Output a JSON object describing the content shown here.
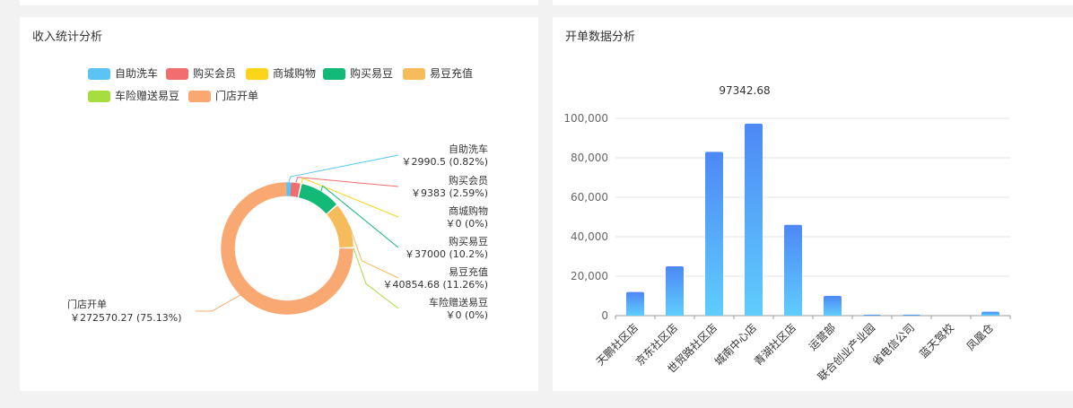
{
  "income_panel": {
    "title": "收入统计分析"
  },
  "orders_panel": {
    "title": "开单数据分析"
  },
  "chart_data": [
    {
      "type": "pie",
      "variant": "donut",
      "legend_position": "top-left",
      "slices": [
        {
          "name": "自助洗车",
          "value": 2990.5,
          "label": "￥2990.5 (0.82%)",
          "color": "#5bc4f4"
        },
        {
          "name": "购买会员",
          "value": 9383,
          "label": "￥9383 (2.59%)",
          "color": "#f26d6d"
        },
        {
          "name": "商城购物",
          "value": 0,
          "label": "￥0 (0%)",
          "color": "#fad51a"
        },
        {
          "name": "购买易豆",
          "value": 37000,
          "label": "￥37000 (10.2%)",
          "color": "#13b976"
        },
        {
          "name": "易豆充值",
          "value": 40854.68,
          "label": "￥40854.68 (11.26%)",
          "color": "#f6bb5a"
        },
        {
          "name": "车险赠送易豆",
          "value": 0,
          "label": "￥0 (0%)",
          "color": "#a8dd3f"
        },
        {
          "name": "门店开单",
          "value": 272570.27,
          "label": "￥272570.27 (75.13%)",
          "color": "#f8a870"
        }
      ]
    },
    {
      "type": "bar",
      "categories": [
        "天鹏社区店",
        "京东社区店",
        "世贸路社区店",
        "城南中心店",
        "青湖社区店",
        "运营部",
        "联合创业产业园",
        "省电信公司",
        "蓝天驾校",
        "凤凰仓"
      ],
      "values": [
        12000,
        25000,
        83000,
        97342.68,
        46000,
        10000,
        500,
        500,
        0,
        2000
      ],
      "annotation": "97342.68",
      "yticks": [
        "0",
        "20,000",
        "40,000",
        "60,000",
        "80,000",
        "100,000"
      ],
      "ylim": [
        0,
        100000
      ],
      "grid": true,
      "colors": {
        "bar_top": "#4d88f5",
        "bar_bottom": "#5fcdfc"
      }
    }
  ]
}
